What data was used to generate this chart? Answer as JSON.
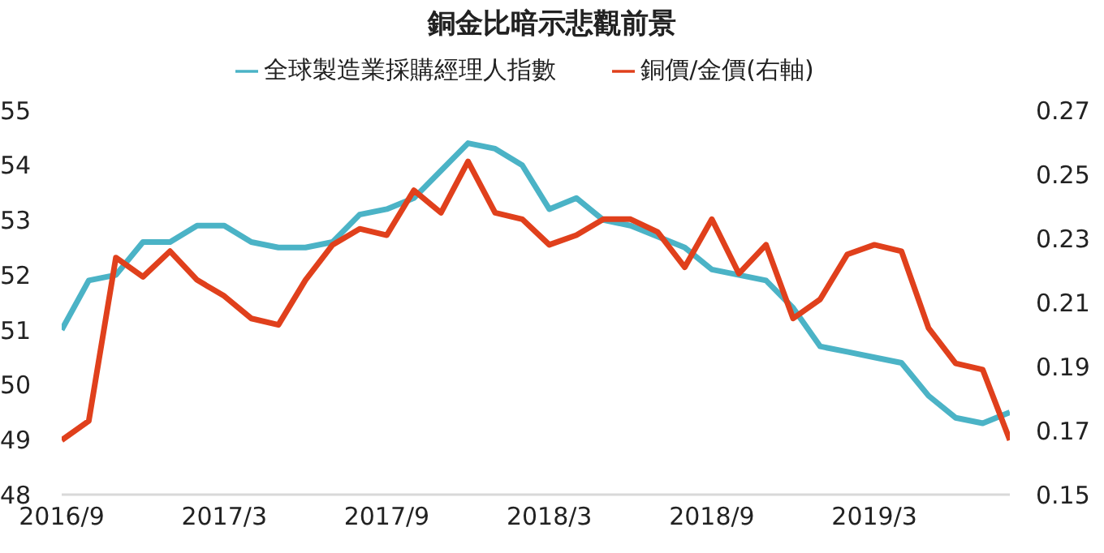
{
  "chart_data": {
    "type": "line",
    "title": "銅金比暗示悲觀前景",
    "x": [
      "2016-09",
      "2016-10",
      "2016-11",
      "2016-12",
      "2017-01",
      "2017-02",
      "2017-03",
      "2017-04",
      "2017-05",
      "2017-06",
      "2017-07",
      "2017-08",
      "2017-09",
      "2017-10",
      "2017-11",
      "2017-12",
      "2018-01",
      "2018-02",
      "2018-03",
      "2018-04",
      "2018-05",
      "2018-06",
      "2018-07",
      "2018-08",
      "2018-09",
      "2018-10",
      "2018-11",
      "2018-12",
      "2019-01",
      "2019-02",
      "2019-03",
      "2019-04",
      "2019-05",
      "2019-06",
      "2019-07",
      "2019-08"
    ],
    "series": [
      {
        "name": "全球製造業採購經理人指數",
        "color": "#4bb3c6",
        "values": [
          51.0,
          51.9,
          52.0,
          52.6,
          52.6,
          52.9,
          52.9,
          52.6,
          52.5,
          52.5,
          52.6,
          53.1,
          53.2,
          53.4,
          53.9,
          54.4,
          54.3,
          54.0,
          53.2,
          53.4,
          53.0,
          52.9,
          52.7,
          52.5,
          52.1,
          52.0,
          51.9,
          51.4,
          50.7,
          50.6,
          50.5,
          50.4,
          49.8,
          49.4,
          49.3,
          49.5
        ]
      },
      {
        "name": "銅價/金價(右軸)",
        "color": "#e0401c",
        "axis": "y2",
        "values": [
          0.167,
          0.173,
          0.224,
          0.218,
          0.226,
          0.217,
          0.212,
          0.205,
          0.203,
          0.217,
          0.228,
          0.233,
          0.231,
          0.245,
          0.238,
          0.254,
          0.238,
          0.236,
          0.228,
          0.231,
          0.236,
          0.236,
          0.232,
          0.221,
          0.236,
          0.219,
          0.228,
          0.205,
          0.211,
          0.225,
          0.228,
          0.226,
          0.202,
          0.191,
          0.189,
          0.167
        ]
      }
    ],
    "xlim": [
      "2016-09",
      "2019-08"
    ],
    "xticks": [
      {
        "value": "2016-09",
        "label": "2016/9"
      },
      {
        "value": "2017-03",
        "label": "2017/3"
      },
      {
        "value": "2017-09",
        "label": "2017/9"
      },
      {
        "value": "2018-03",
        "label": "2018/3"
      },
      {
        "value": "2018-09",
        "label": "2018/9"
      },
      {
        "value": "2019-03",
        "label": "2019/3"
      }
    ],
    "ylim": [
      48,
      55
    ],
    "yticks": [
      48,
      49,
      50,
      51,
      52,
      53,
      54,
      55
    ],
    "y2lim": [
      0.15,
      0.27
    ],
    "y2ticks": [
      0.15,
      0.17,
      0.19,
      0.21,
      0.23,
      0.25,
      0.27
    ],
    "grid": false,
    "legend": "top",
    "marker": "none",
    "line_style": "solid"
  }
}
